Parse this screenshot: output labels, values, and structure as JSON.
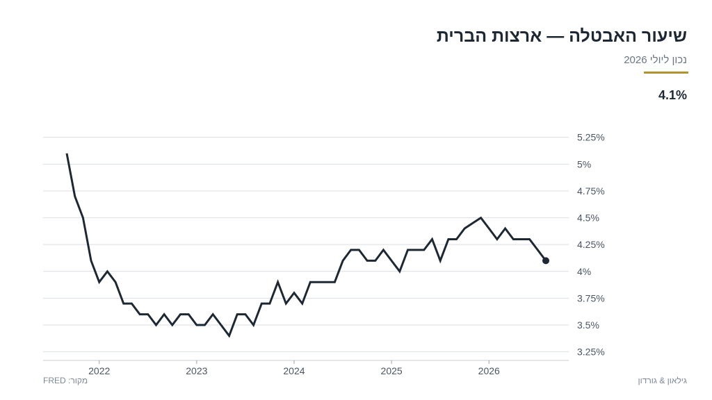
{
  "header": {
    "title": "שיעור האבטלה — ארצות הברית",
    "subtitle": "נכון ליולי 2026",
    "latest_value": "4.1%"
  },
  "footer": {
    "source": "מקור: FRED",
    "credit": "גילאון & גורדון"
  },
  "colors": {
    "line": "#1e2833",
    "accent": "#b0922e",
    "grid": "#d9dde2"
  },
  "chart_data": {
    "type": "line",
    "x_start": "2021-09",
    "x_end": "2026-07",
    "x_ticks": [
      "2022",
      "2023",
      "2024",
      "2025",
      "2026"
    ],
    "y_ticks": [
      {
        "value": 3.25,
        "label": "3.25%"
      },
      {
        "value": 3.5,
        "label": "3.5%"
      },
      {
        "value": 3.75,
        "label": "3.75%"
      },
      {
        "value": 4.0,
        "label": "4%"
      },
      {
        "value": 4.25,
        "label": "4.25%"
      },
      {
        "value": 4.5,
        "label": "4.5%"
      },
      {
        "value": 4.75,
        "label": "4.75%"
      },
      {
        "value": 5.0,
        "label": "5%"
      },
      {
        "value": 5.25,
        "label": "5.25%"
      }
    ],
    "ylim": [
      3.17,
      5.3
    ],
    "grid": true,
    "marker_on_last_point": true,
    "series": [
      {
        "values": [
          5.1,
          4.7,
          4.5,
          4.1,
          3.9,
          4.0,
          3.9,
          3.7,
          3.7,
          3.6,
          3.6,
          3.5,
          3.6,
          3.5,
          3.6,
          3.6,
          3.5,
          3.5,
          3.6,
          3.5,
          3.4,
          3.6,
          3.6,
          3.5,
          3.7,
          3.7,
          3.9,
          3.7,
          3.8,
          3.7,
          3.9,
          3.9,
          3.9,
          3.9,
          4.1,
          4.2,
          4.2,
          4.1,
          4.1,
          4.2,
          4.1,
          4.0,
          4.2,
          4.2,
          4.2,
          4.3,
          4.1,
          4.3,
          4.3,
          4.4,
          4.45,
          4.5,
          4.4,
          4.3,
          4.4,
          4.3,
          4.3,
          4.3,
          4.2,
          4.1
        ]
      }
    ]
  }
}
